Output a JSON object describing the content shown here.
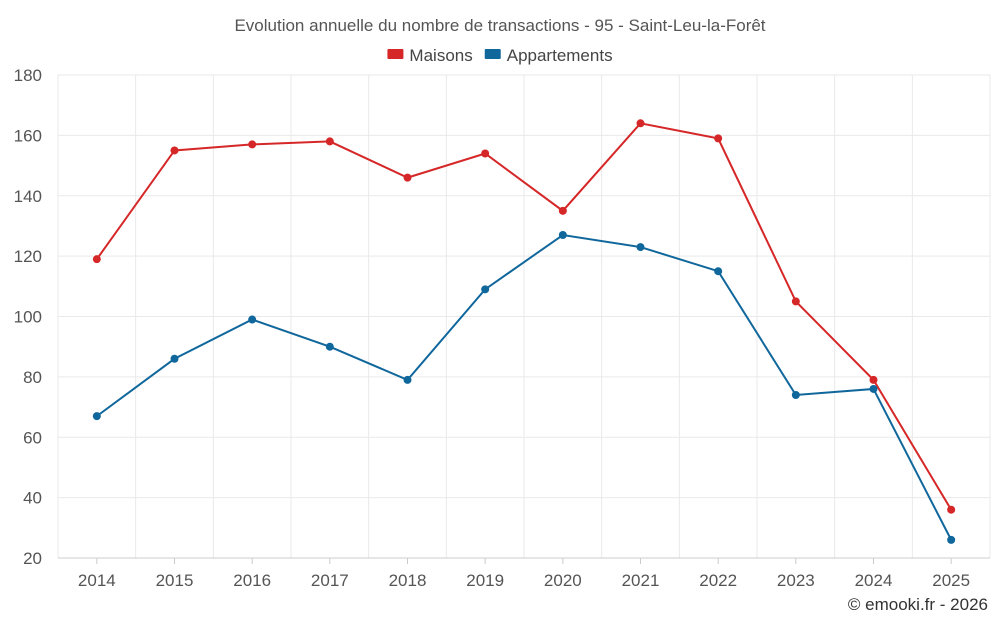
{
  "chart_data": {
    "type": "line",
    "title": "Evolution annuelle du nombre de transactions - 95 - Saint-Leu-la-Forêt",
    "categories": [
      "2014",
      "2015",
      "2016",
      "2017",
      "2018",
      "2019",
      "2020",
      "2021",
      "2022",
      "2023",
      "2024",
      "2025"
    ],
    "series": [
      {
        "name": "Maisons",
        "color": "#d62728",
        "values": [
          119,
          155,
          157,
          158,
          146,
          154,
          135,
          164,
          159,
          105,
          79,
          36
        ]
      },
      {
        "name": "Appartements",
        "color": "#10679c",
        "values": [
          67,
          86,
          99,
          90,
          79,
          109,
          127,
          123,
          115,
          74,
          76,
          26
        ]
      }
    ],
    "yticks": [
      20,
      40,
      60,
      80,
      100,
      120,
      140,
      160,
      180
    ],
    "ylim": [
      20,
      180
    ],
    "grid": true,
    "legend": "top-center",
    "xlabel": "",
    "ylabel": ""
  },
  "credit": "© emooki.fr - 2026"
}
